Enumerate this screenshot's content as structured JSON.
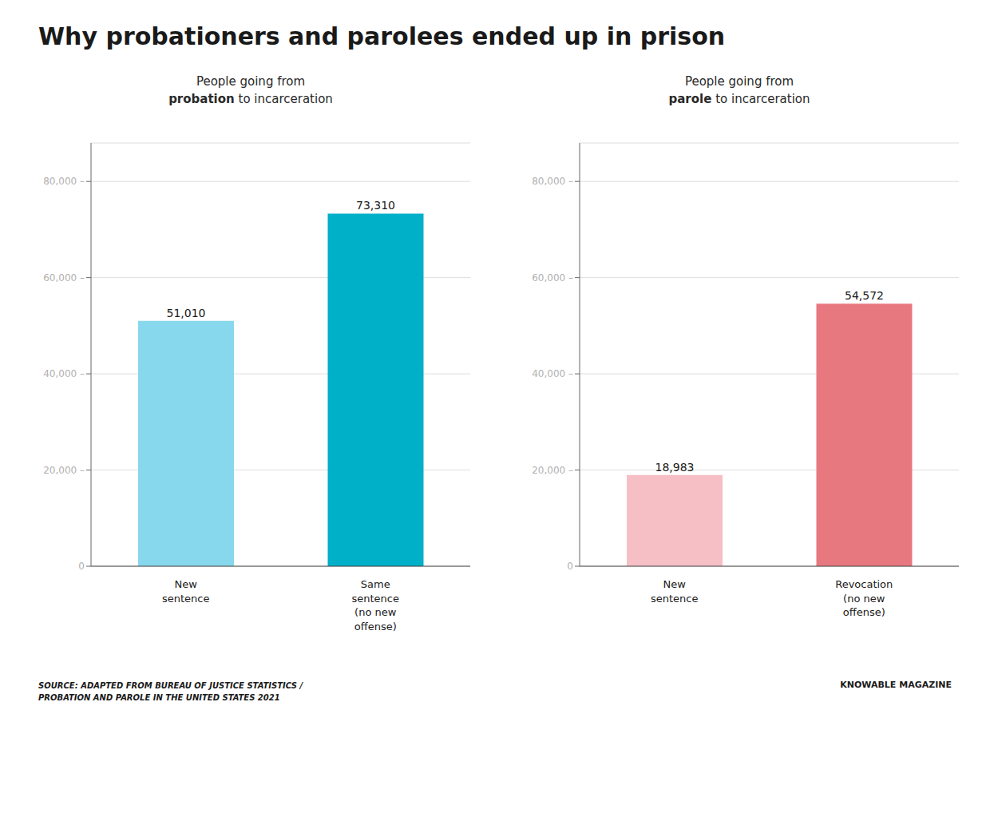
{
  "title": "Why probationers and parolees ended up in prison",
  "chart_data": [
    {
      "type": "bar",
      "subtitle": "People going from\nprobation to incarceration",
      "categories": [
        "New\nsentence",
        "Same\nsentence\n(no new\noffense)"
      ],
      "values": [
        51010,
        73310
      ],
      "value_labels": [
        "51,010",
        "73,310"
      ],
      "colors": [
        "#87d8ec",
        "#00afc8"
      ],
      "ylim": [
        0,
        88000
      ],
      "yticks": [
        0,
        {
          "value": 20000,
          "label": "20,000 –"
        },
        {
          "value": 40000,
          "label": "40,000 –"
        },
        {
          "value": 60000,
          "label": "60,000 –"
        },
        {
          "value": 80000,
          "label": "80,000 –"
        }
      ],
      "grid": true,
      "data_labels": true
    },
    {
      "type": "bar",
      "subtitle": "People going from\nparole to incarceration",
      "categories": [
        "New\nsentence",
        "Revocation\n(no new\noffense)"
      ],
      "values": [
        18983,
        54572
      ],
      "value_labels": [
        "18,983",
        "54,572"
      ],
      "colors": [
        "#f5bfc5",
        "#e87880"
      ],
      "ylim": [
        0,
        88000
      ],
      "yticks": [
        0,
        {
          "value": 20000,
          "label": "20,000 –"
        },
        {
          "value": 40000,
          "label": "40,000 –"
        },
        {
          "value": 60000,
          "label": "60,000 –"
        },
        {
          "value": 80000,
          "label": "80,000 –"
        }
      ],
      "grid": true,
      "data_labels": true
    }
  ],
  "annotations": [
    "SOURCE: ADAPTED FROM BUREAU OF JUSTICE STATISTICS /",
    "PROBATION AND PAROLE IN THE UNITED STATES 2021",
    "KNOWABLE MAGAZINE"
  ]
}
